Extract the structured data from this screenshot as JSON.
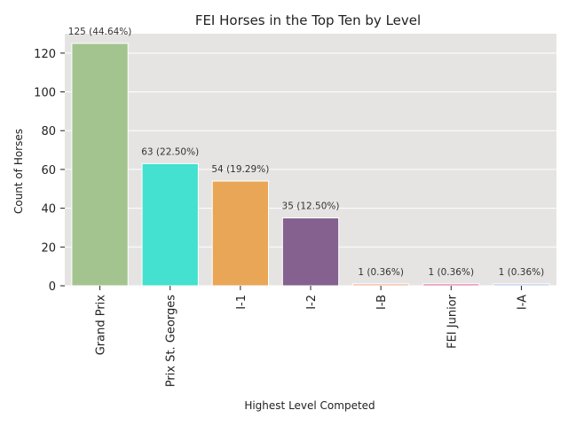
{
  "chart_data": {
    "type": "bar",
    "title": "FEI Horses in the Top Ten by Level",
    "xlabel": "Highest Level Competed",
    "ylabel": "Count of Horses",
    "ylim": [
      0,
      130
    ],
    "yticks": [
      0,
      20,
      40,
      60,
      80,
      100,
      120
    ],
    "grid": true,
    "categories": [
      "Grand Prix",
      "Prix St. Georges",
      "I-1",
      "I-2",
      "I-B",
      "FEI Junior",
      "I-A"
    ],
    "values": [
      125,
      63,
      54,
      35,
      1,
      1,
      1
    ],
    "value_labels": [
      "125 (44.64%)",
      "63 (22.50%)",
      "54 (19.29%)",
      "35 (12.50%)",
      "1 (0.36%)",
      "1 (0.36%)",
      "1 (0.36%)"
    ],
    "colors": [
      "#a3c48f",
      "#44e0d0",
      "#e9a656",
      "#84618e",
      "#f0b49a",
      "#e07aa8",
      "#b8c8e8"
    ]
  }
}
